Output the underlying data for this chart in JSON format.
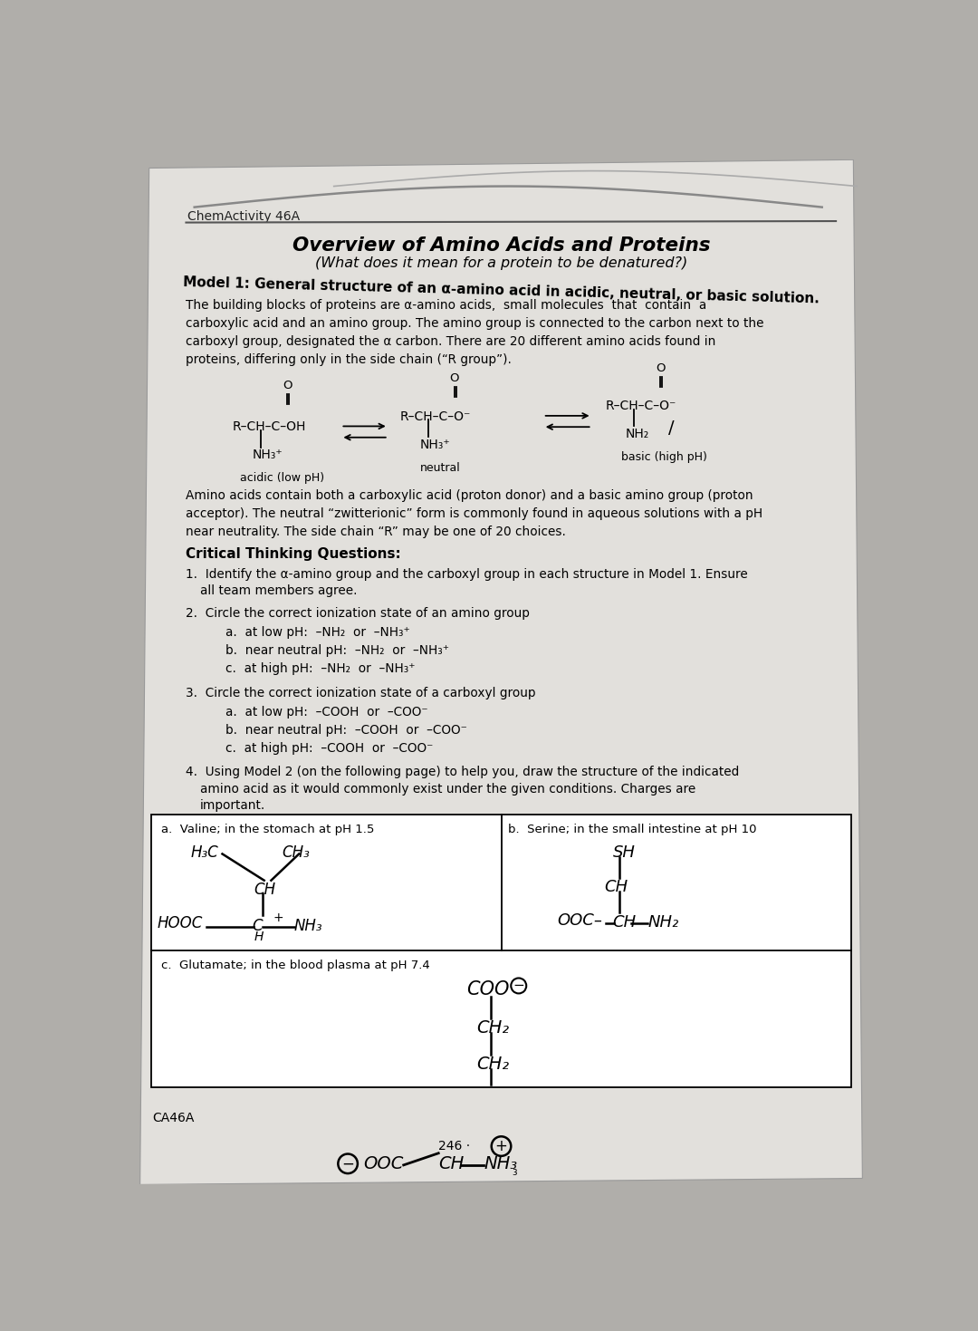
{
  "page_bg": "#b0aeaa",
  "content_bg": "#e2e0dc",
  "header_label": "ChemActivity 46A",
  "footer_label": "CA46A",
  "title_main": "Overview of Amino Acids and Proteins",
  "title_sub": "(What does it mean for a protein to be denatured?)",
  "model_heading_1": "Model 1: General structure of an α-amino acid in acidic, neutral, or basic solution.",
  "body_line1": "The building blocks of proteins are α-amino acids,  small molecules  that  contain  a",
  "body_line2": "carboxylic acid and an amino group. The amino group is connected to the carbon next to the",
  "body_line3": "carboxyl group, designated the α carbon. There are 20 different amino acids found in",
  "body_line4": "proteins, differing only in the side chain (“R group”).",
  "zwit_line1": "Amino acids contain both a carboxylic acid (proton donor) and a basic amino group (proton",
  "zwit_line2": "acceptor). The neutral “zwitterionic” form is commonly found in aqueous solutions with a pH",
  "zwit_line3": "near neutrality. The side chain “R” may be one of 20 choices.",
  "ctq": "Critical Thinking Questions:",
  "q1_a": "1.  Identify the α-amino group and the carboxyl group in each structure in Model 1. Ensure",
  "q1_b": "    all team members agree.",
  "q2_h": "2.  Circle the correct ionization state of an amino group",
  "q2_a": "a.  at low pH:  –NH₂  or  –NH₃⁺",
  "q2_b": "b.  near neutral pH:  –NH₂  or  –NH₃⁺",
  "q2_c": "c.  at high pH:  –NH₂  or  –NH₃⁺",
  "q3_h": "3.  Circle the correct ionization state of a carboxyl group",
  "q3_a": "a.  at low pH:  –COOH  or  –COO⁻",
  "q3_b": "b.  near neutral pH:  –COOH  or  –COO⁻",
  "q3_c": "c.  at high pH:  –COOH  or  –COO⁻",
  "q4_a": "4.  Using Model 2 (on the following page) to help you, draw the structure of the indicated",
  "q4_b": "    amino acid as it would commonly exist under the given conditions. Charges are",
  "q4_c": "    important.",
  "cell_a": "a.  Valine; in the stomach at pH 1.5",
  "cell_b": "b.  Serine; in the small intestine at pH 10",
  "cell_c": "c.  Glutamate; in the blood plasma at pH 7.4"
}
